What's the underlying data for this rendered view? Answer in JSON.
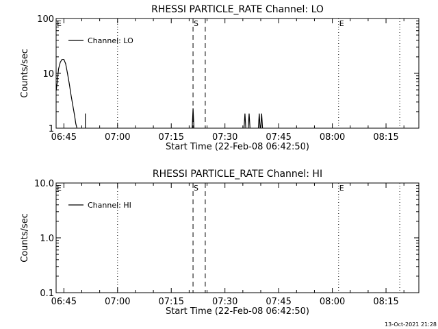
{
  "footer_timestamp": "13-Oct-2021 21:28",
  "chart_data": [
    {
      "type": "line",
      "title": "RHESSI PARTICLE_RATE Channel: LO",
      "xlabel": "Start Time (22-Feb-08 06:42:50)",
      "ylabel": "Counts/sec",
      "yscale": "log",
      "ylim": [
        1,
        100
      ],
      "xlim": [
        "06:42:50",
        "08:24:10"
      ],
      "x_ticks": [
        "06:45",
        "07:00",
        "07:15",
        "07:30",
        "07:45",
        "08:00",
        "08:15"
      ],
      "y_ticks": [
        "1",
        "10",
        "100"
      ],
      "legend": {
        "entry": "Channel: LO",
        "position": "top-left"
      },
      "markers": [
        {
          "label": "E",
          "time": "06:42:50",
          "style": "dotted"
        },
        {
          "label": "S",
          "time": "07:21:05",
          "style": "dashed"
        },
        {
          "label": "",
          "time": "07:24:30",
          "style": "dashed"
        },
        {
          "label": "E",
          "time": "08:01:45",
          "style": "dotted"
        },
        {
          "label": "",
          "time": "07:00:00",
          "style": "dotted"
        },
        {
          "label": "",
          "time": "08:18:50",
          "style": "dotted"
        }
      ],
      "series": [
        {
          "segments": [
            {
              "x": [
                "06:42:50",
                "06:43:10",
                "06:43:30",
                "06:44:00",
                "06:44:30",
                "06:45:00",
                "06:45:30",
                "06:46:00",
                "06:46:30",
                "06:47:00",
                "06:47:30",
                "06:48:00",
                "06:48:20",
                "06:48:40"
              ],
              "y": [
                4.8,
                7,
                12,
                16,
                18,
                18,
                15,
                10,
                6.5,
                4,
                2.6,
                1.7,
                1.2,
                1.0
              ]
            },
            {
              "x": [
                "06:51:00",
                "06:51:00"
              ],
              "y": [
                1.0,
                1.85
              ]
            },
            {
              "x": [
                "07:20:50",
                "07:21:05",
                "07:21:20"
              ],
              "y": [
                1.0,
                2.3,
                1.0
              ]
            },
            {
              "x": [
                "07:35:20",
                "07:35:35",
                "07:35:50"
              ],
              "y": [
                1.0,
                1.85,
                1.0
              ]
            },
            {
              "x": [
                "07:36:30",
                "07:36:45",
                "07:37:00"
              ],
              "y": [
                1.0,
                1.85,
                1.0
              ]
            },
            {
              "x": [
                "07:39:20",
                "07:39:35",
                "07:39:50"
              ],
              "y": [
                1.0,
                1.85,
                1.0
              ]
            },
            {
              "x": [
                "07:40:00",
                "07:40:15",
                "07:40:30"
              ],
              "y": [
                1.0,
                1.85,
                1.0
              ]
            }
          ]
        }
      ]
    },
    {
      "type": "line",
      "title": "RHESSI PARTICLE_RATE Channel: HI",
      "xlabel": "Start Time (22-Feb-08 06:42:50)",
      "ylabel": "Counts/sec",
      "yscale": "log",
      "ylim": [
        0.1,
        10
      ],
      "xlim": [
        "06:42:50",
        "08:24:10"
      ],
      "x_ticks": [
        "06:45",
        "07:00",
        "07:15",
        "07:30",
        "07:45",
        "08:00",
        "08:15"
      ],
      "y_ticks": [
        "0.1",
        "1.0",
        "10.0"
      ],
      "legend": {
        "entry": "Channel: HI",
        "position": "top-left"
      },
      "markers": [
        {
          "label": "E",
          "time": "06:42:50",
          "style": "dotted"
        },
        {
          "label": "S",
          "time": "07:21:05",
          "style": "dashed"
        },
        {
          "label": "",
          "time": "07:24:30",
          "style": "dashed"
        },
        {
          "label": "E",
          "time": "08:01:45",
          "style": "dotted"
        },
        {
          "label": "",
          "time": "07:00:00",
          "style": "dotted"
        },
        {
          "label": "",
          "time": "08:18:50",
          "style": "dotted"
        }
      ],
      "series": [
        {
          "segments": []
        }
      ]
    }
  ]
}
